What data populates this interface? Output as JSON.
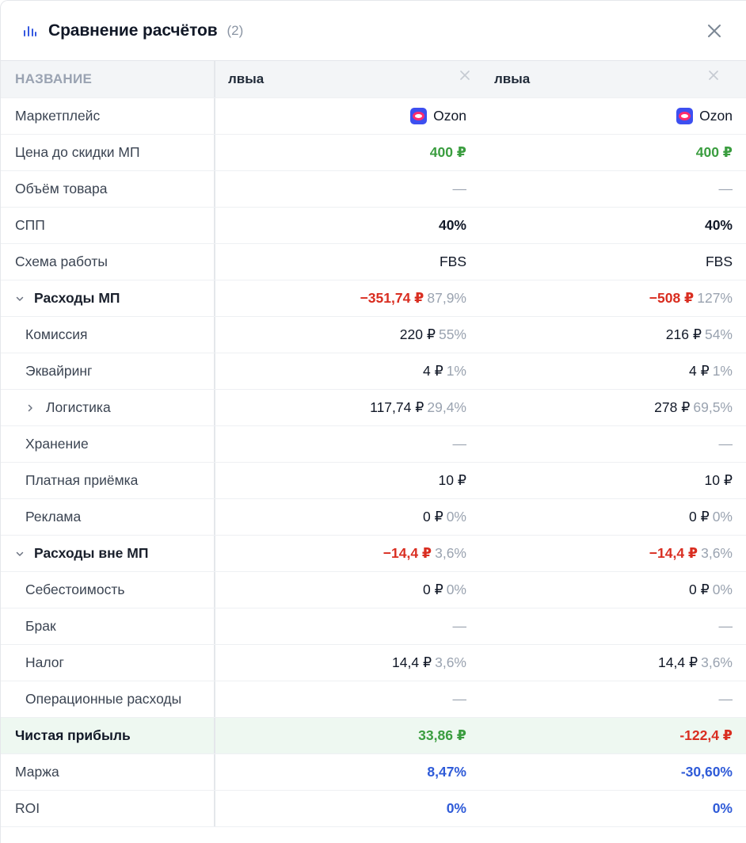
{
  "header": {
    "title": "Сравнение расчётов",
    "count": "(2)"
  },
  "columns": {
    "label_header": "НАЗВАНИЕ",
    "names": [
      "лвыа",
      "лвыа"
    ]
  },
  "colors": {
    "green": "#3a9d3f",
    "red": "#d92d20",
    "blue": "#2f5bd8",
    "profit_row_bg": "#eef8f1",
    "header_row_bg": "#f3f5f7"
  },
  "rows": {
    "marketplace": {
      "label": "Маркетплейс",
      "v1": "Ozon",
      "v2": "Ozon",
      "icon": "ozon-logo-icon"
    },
    "price": {
      "label": "Цена до скидки МП",
      "v1": "400 ₽",
      "v2": "400 ₽"
    },
    "volume": {
      "label": "Объём товара",
      "v1": "—",
      "v2": "—"
    },
    "spp": {
      "label": "СПП",
      "v1": "40%",
      "v2": "40%"
    },
    "scheme": {
      "label": "Схема работы",
      "v1": "FBS",
      "v2": "FBS"
    },
    "mp_costs": {
      "label": "Расходы МП",
      "v1": "−351,74 ₽",
      "p1": "87,9%",
      "v2": "−508 ₽",
      "p2": "127%"
    },
    "commission": {
      "label": "Комиссия",
      "v1": "220 ₽",
      "p1": "55%",
      "v2": "216 ₽",
      "p2": "54%"
    },
    "acquiring": {
      "label": "Эквайринг",
      "v1": "4 ₽",
      "p1": "1%",
      "v2": "4 ₽",
      "p2": "1%"
    },
    "logistics": {
      "label": "Логистика",
      "v1": "117,74 ₽",
      "p1": "29,4%",
      "v2": "278 ₽",
      "p2": "69,5%"
    },
    "storage": {
      "label": "Хранение",
      "v1": "—",
      "v2": "—"
    },
    "paid_acceptance": {
      "label": "Платная приёмка",
      "v1": "10 ₽",
      "v2": "10 ₽"
    },
    "ads": {
      "label": "Реклама",
      "v1": "0 ₽",
      "p1": "0%",
      "v2": "0 ₽",
      "p2": "0%"
    },
    "non_mp_costs": {
      "label": "Расходы вне МП",
      "v1": "−14,4 ₽",
      "p1": "3,6%",
      "v2": "−14,4 ₽",
      "p2": "3,6%"
    },
    "cost_price": {
      "label": "Себестоимость",
      "v1": "0 ₽",
      "p1": "0%",
      "v2": "0 ₽",
      "p2": "0%"
    },
    "defect": {
      "label": "Брак",
      "v1": "—",
      "v2": "—"
    },
    "tax": {
      "label": "Налог",
      "v1": "14,4 ₽",
      "p1": "3,6%",
      "v2": "14,4 ₽",
      "p2": "3,6%"
    },
    "operational": {
      "label": "Операционные расходы",
      "v1": "—",
      "v2": "—"
    },
    "net_profit": {
      "label": "Чистая прибыль",
      "v1": "33,86 ₽",
      "v2": "-122,4 ₽"
    },
    "margin": {
      "label": "Маржа",
      "v1": "8,47%",
      "v2": "-30,60%"
    },
    "roi": {
      "label": "ROI",
      "v1": "0%",
      "v2": "0%"
    }
  }
}
